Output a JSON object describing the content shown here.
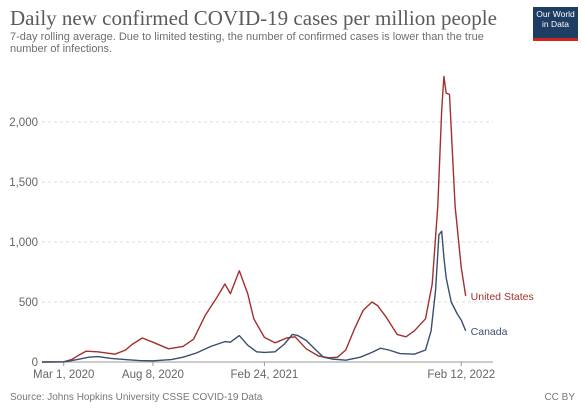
{
  "header": {
    "title": "Daily new confirmed COVID-19 cases per million people",
    "subtitle": "7-day rolling average. Due to limited testing, the number of confirmed cases is lower than the true number of infections."
  },
  "logo": {
    "line1": "Our World",
    "line2": "in Data",
    "bg": "#1d3d63",
    "accent": "#ce261e"
  },
  "footer": {
    "source": "Source: Johns Hopkins University CSSE COVID-19 Data",
    "license": "CC BY"
  },
  "chart_data": {
    "type": "line",
    "title": "Daily new confirmed COVID-19 cases per million people",
    "xlabel": "",
    "ylabel": "",
    "x_unit": "date",
    "xlim": [
      "2020-01-22",
      "2022-04-10"
    ],
    "ylim": [
      0,
      2500
    ],
    "y_ticks": [
      0,
      500,
      1000,
      1500,
      2000
    ],
    "y_tick_labels": [
      "0",
      "500",
      "1,000",
      "1,500",
      "2,000"
    ],
    "x_ticks": [
      "2020-03-01",
      "2020-08-08",
      "2021-02-24",
      "2022-02-12"
    ],
    "x_tick_labels": [
      "Mar 1, 2020",
      "Aug 8, 2020",
      "Feb 24, 2021",
      "Feb 12, 2022"
    ],
    "grid": true,
    "legend": "end-of-line labels",
    "series": [
      {
        "name": "United States",
        "color": "#a2302e",
        "points": [
          [
            "2020-01-22",
            0
          ],
          [
            "2020-03-01",
            2
          ],
          [
            "2020-03-15",
            20
          ],
          [
            "2020-03-31",
            65
          ],
          [
            "2020-04-10",
            90
          ],
          [
            "2020-05-01",
            85
          ],
          [
            "2020-06-01",
            65
          ],
          [
            "2020-06-20",
            100
          ],
          [
            "2020-07-01",
            145
          ],
          [
            "2020-07-20",
            200
          ],
          [
            "2020-08-08",
            165
          ],
          [
            "2020-09-05",
            110
          ],
          [
            "2020-10-01",
            130
          ],
          [
            "2020-10-20",
            190
          ],
          [
            "2020-11-10",
            390
          ],
          [
            "2020-12-01",
            540
          ],
          [
            "2020-12-15",
            650
          ],
          [
            "2020-12-25",
            570
          ],
          [
            "2021-01-10",
            760
          ],
          [
            "2021-01-25",
            570
          ],
          [
            "2021-02-05",
            360
          ],
          [
            "2021-02-24",
            205
          ],
          [
            "2021-03-15",
            160
          ],
          [
            "2021-04-05",
            200
          ],
          [
            "2021-04-20",
            210
          ],
          [
            "2021-05-10",
            110
          ],
          [
            "2021-06-01",
            50
          ],
          [
            "2021-06-20",
            35
          ],
          [
            "2021-07-05",
            40
          ],
          [
            "2021-07-20",
            100
          ],
          [
            "2021-08-05",
            280
          ],
          [
            "2021-08-20",
            430
          ],
          [
            "2021-09-05",
            500
          ],
          [
            "2021-09-15",
            470
          ],
          [
            "2021-10-01",
            370
          ],
          [
            "2021-10-20",
            230
          ],
          [
            "2021-11-05",
            210
          ],
          [
            "2021-11-20",
            260
          ],
          [
            "2021-12-10",
            360
          ],
          [
            "2021-12-22",
            650
          ],
          [
            "2022-01-01",
            1300
          ],
          [
            "2022-01-08",
            2100
          ],
          [
            "2022-01-12",
            2380
          ],
          [
            "2022-01-16",
            2240
          ],
          [
            "2022-01-22",
            2230
          ],
          [
            "2022-02-01",
            1300
          ],
          [
            "2022-02-12",
            790
          ],
          [
            "2022-02-20",
            550
          ]
        ]
      },
      {
        "name": "Canada",
        "color": "#3a4e6f",
        "points": [
          [
            "2020-01-22",
            0
          ],
          [
            "2020-03-01",
            1
          ],
          [
            "2020-03-25",
            20
          ],
          [
            "2020-04-15",
            40
          ],
          [
            "2020-05-01",
            45
          ],
          [
            "2020-05-25",
            30
          ],
          [
            "2020-06-20",
            20
          ],
          [
            "2020-07-15",
            12
          ],
          [
            "2020-08-08",
            10
          ],
          [
            "2020-09-10",
            20
          ],
          [
            "2020-10-01",
            40
          ],
          [
            "2020-10-25",
            75
          ],
          [
            "2020-11-20",
            130
          ],
          [
            "2020-12-15",
            170
          ],
          [
            "2020-12-25",
            165
          ],
          [
            "2021-01-10",
            220
          ],
          [
            "2021-01-25",
            140
          ],
          [
            "2021-02-10",
            85
          ],
          [
            "2021-02-24",
            80
          ],
          [
            "2021-03-15",
            85
          ],
          [
            "2021-04-01",
            150
          ],
          [
            "2021-04-15",
            230
          ],
          [
            "2021-04-25",
            220
          ],
          [
            "2021-05-10",
            180
          ],
          [
            "2021-05-25",
            110
          ],
          [
            "2021-06-10",
            40
          ],
          [
            "2021-06-25",
            25
          ],
          [
            "2021-07-20",
            15
          ],
          [
            "2021-08-15",
            40
          ],
          [
            "2021-09-05",
            80
          ],
          [
            "2021-09-20",
            115
          ],
          [
            "2021-10-05",
            100
          ],
          [
            "2021-10-25",
            70
          ],
          [
            "2021-11-20",
            65
          ],
          [
            "2021-12-10",
            100
          ],
          [
            "2021-12-20",
            260
          ],
          [
            "2021-12-28",
            600
          ],
          [
            "2022-01-03",
            1060
          ],
          [
            "2022-01-08",
            1090
          ],
          [
            "2022-01-12",
            870
          ],
          [
            "2022-01-16",
            700
          ],
          [
            "2022-01-25",
            500
          ],
          [
            "2022-02-05",
            400
          ],
          [
            "2022-02-12",
            350
          ],
          [
            "2022-02-20",
            260
          ]
        ]
      }
    ]
  }
}
